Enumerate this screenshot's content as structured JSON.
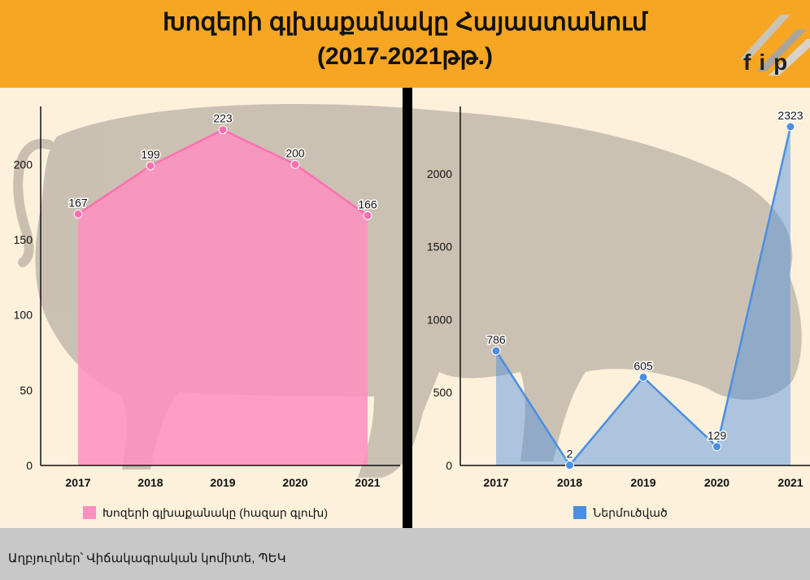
{
  "header": {
    "title_line1": "Խոզերի գլխաքանակը Հայաստանում",
    "title_line2": "(2017-2021թթ.)",
    "logo_text": "fip"
  },
  "footer": {
    "source": "Աղբյուրներ՝ Վիճակագրական կոմիտե, ՊԵԿ"
  },
  "colors": {
    "header_bg": "#f6a623",
    "background": "#fdf1dc",
    "pink": "#ff8fc0",
    "blue": "#4a8fe0",
    "footer_bg": "#c9c8c8",
    "silhouette": "#b9b0a4"
  },
  "chart_data": [
    {
      "type": "area",
      "categories": [
        "2017",
        "2018",
        "2019",
        "2020",
        "2021"
      ],
      "series": [
        {
          "name": "Խոզերի գլխաքանակը (հազար գլուխ)",
          "values": [
            167,
            199,
            223,
            200,
            166
          ]
        }
      ],
      "ylim": [
        0,
        225
      ],
      "yticks": [
        "0",
        "50",
        "100",
        "150",
        "200"
      ],
      "legend": "bottom",
      "grid": false
    },
    {
      "type": "area",
      "categories": [
        "2017",
        "2018",
        "2019",
        "2020",
        "2021"
      ],
      "series": [
        {
          "name": "Ներմուծված",
          "values": [
            786,
            2,
            605,
            129,
            2323
          ]
        }
      ],
      "ylim": [
        0,
        2323
      ],
      "yticks": [
        "0",
        "500",
        "1000",
        "1500",
        "2000"
      ],
      "legend": "bottom",
      "grid": false
    }
  ]
}
